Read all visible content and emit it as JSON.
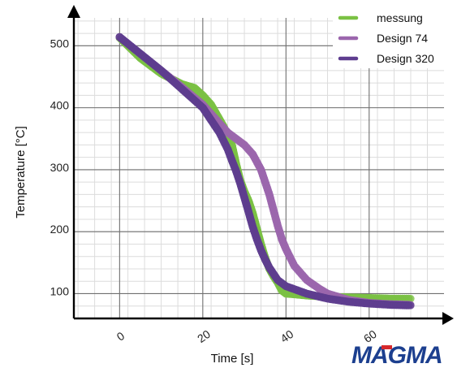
{
  "chart_data": {
    "type": "scatter",
    "xlabel": "Time [s]",
    "ylabel": "Temperature [°C]",
    "xlim": [
      -11,
      78
    ],
    "ylim": [
      60,
      545
    ],
    "x_ticks": [
      0,
      20,
      40,
      60
    ],
    "x_tick_labels": [
      "0",
      "20",
      "40",
      "60"
    ],
    "y_ticks": [
      100,
      200,
      300,
      400,
      500
    ],
    "y_tick_labels": [
      "100",
      "200",
      "300",
      "400",
      "500"
    ],
    "grid": true,
    "legend_position": "top-right",
    "series": [
      {
        "name": "messung",
        "color": "#7ac143",
        "x": [
          0,
          5,
          10,
          15,
          18,
          20,
          22,
          25,
          27,
          28,
          29,
          30,
          31,
          32,
          33,
          34,
          35,
          36,
          37,
          38,
          39,
          40,
          42,
          45,
          50,
          55,
          60,
          65,
          70
        ],
        "y": [
          513,
          480,
          455,
          438,
          432,
          420,
          405,
          370,
          340,
          310,
          283,
          265,
          250,
          230,
          205,
          180,
          158,
          140,
          128,
          118,
          105,
          100,
          99,
          97,
          95,
          94,
          93,
          92,
          92
        ]
      },
      {
        "name": "Design 74",
        "color": "#9b66ad",
        "x": [
          0,
          5,
          10,
          15,
          20,
          22,
          24,
          26,
          28,
          30,
          32,
          34,
          35,
          36,
          37,
          38,
          39,
          40,
          42,
          45,
          48,
          50,
          55,
          60,
          65,
          70
        ],
        "y": [
          514,
          487,
          460,
          433,
          405,
          390,
          375,
          360,
          350,
          340,
          325,
          300,
          280,
          260,
          235,
          210,
          188,
          172,
          145,
          122,
          108,
          100,
          90,
          85,
          83,
          82
        ]
      },
      {
        "name": "Design 320",
        "color": "#5e3d8f",
        "x": [
          0,
          5,
          10,
          15,
          20,
          22,
          24,
          26,
          27,
          28,
          29,
          30,
          31,
          32,
          33,
          34,
          35,
          36,
          38,
          40,
          45,
          50,
          55,
          60,
          65,
          70
        ],
        "y": [
          514,
          487,
          460,
          430,
          400,
          380,
          360,
          333,
          315,
          298,
          278,
          255,
          232,
          208,
          188,
          170,
          155,
          142,
          122,
          112,
          100,
          92,
          87,
          84,
          82,
          81
        ]
      }
    ]
  },
  "logo": {
    "text": "MAGMA",
    "color": "#1c3f8f",
    "accent": "#d6292c"
  }
}
